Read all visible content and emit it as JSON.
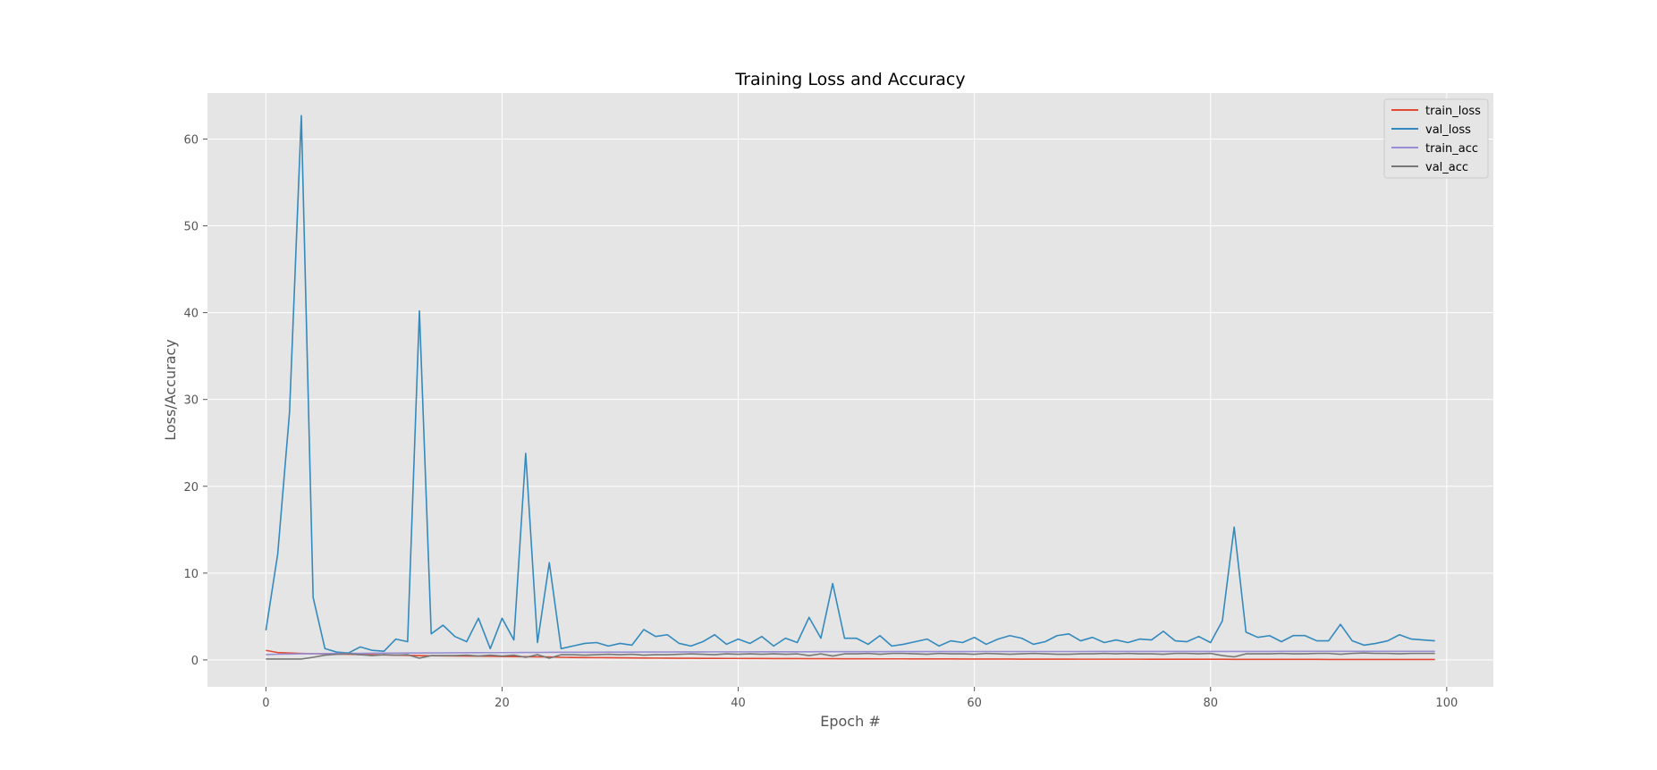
{
  "chart_data": {
    "type": "line",
    "title": "Training Loss and Accuracy",
    "xlabel": "Epoch #",
    "ylabel": "Loss/Accuracy",
    "xlim": [
      -4.95,
      103.95
    ],
    "ylim": [
      -3.1,
      65.3
    ],
    "xticks": [
      0,
      20,
      40,
      60,
      80,
      100
    ],
    "yticks": [
      0,
      10,
      20,
      30,
      40,
      50,
      60
    ],
    "grid": true,
    "legend_position": "top-right",
    "background_color": "#e5e5e5",
    "series": [
      {
        "name": "train_loss",
        "color": "#e24a33",
        "x": [
          0,
          1,
          2,
          3,
          4,
          5,
          6,
          7,
          8,
          9,
          10,
          11,
          12,
          13,
          14,
          15,
          16,
          17,
          18,
          19,
          20,
          21,
          22,
          23,
          24,
          25,
          26,
          27,
          28,
          29,
          30,
          31,
          32,
          33,
          34,
          35,
          36,
          37,
          38,
          39,
          40,
          41,
          42,
          43,
          44,
          45,
          46,
          47,
          48,
          49,
          50,
          51,
          52,
          53,
          54,
          55,
          56,
          57,
          58,
          59,
          60,
          61,
          62,
          63,
          64,
          65,
          66,
          67,
          68,
          69,
          70,
          71,
          72,
          73,
          74,
          75,
          76,
          77,
          78,
          79,
          80,
          81,
          82,
          83,
          84,
          85,
          86,
          87,
          88,
          89,
          90,
          91,
          92,
          93,
          94,
          95,
          96,
          97,
          98,
          99
        ],
        "values": [
          1.1,
          0.85,
          0.8,
          0.75,
          0.72,
          0.7,
          0.68,
          0.65,
          0.62,
          0.6,
          0.58,
          0.55,
          0.52,
          0.5,
          0.48,
          0.47,
          0.46,
          0.45,
          0.43,
          0.42,
          0.4,
          0.38,
          0.37,
          0.35,
          0.34,
          0.3,
          0.28,
          0.27,
          0.26,
          0.25,
          0.24,
          0.23,
          0.22,
          0.21,
          0.2,
          0.19,
          0.19,
          0.18,
          0.18,
          0.17,
          0.17,
          0.16,
          0.16,
          0.15,
          0.15,
          0.15,
          0.14,
          0.14,
          0.14,
          0.13,
          0.13,
          0.13,
          0.12,
          0.12,
          0.12,
          0.11,
          0.11,
          0.11,
          0.11,
          0.1,
          0.1,
          0.1,
          0.1,
          0.1,
          0.09,
          0.09,
          0.09,
          0.09,
          0.09,
          0.08,
          0.08,
          0.08,
          0.08,
          0.08,
          0.08,
          0.07,
          0.07,
          0.07,
          0.07,
          0.07,
          0.07,
          0.07,
          0.06,
          0.06,
          0.06,
          0.06,
          0.06,
          0.06,
          0.06,
          0.06,
          0.05,
          0.05,
          0.05,
          0.05,
          0.05,
          0.05,
          0.05,
          0.05,
          0.05,
          0.05
        ]
      },
      {
        "name": "val_loss",
        "color": "#348abd",
        "x": [
          0,
          1,
          2,
          3,
          4,
          5,
          6,
          7,
          8,
          9,
          10,
          11,
          12,
          13,
          14,
          15,
          16,
          17,
          18,
          19,
          20,
          21,
          22,
          23,
          24,
          25,
          26,
          27,
          28,
          29,
          30,
          31,
          32,
          33,
          34,
          35,
          36,
          37,
          38,
          39,
          40,
          41,
          42,
          43,
          44,
          45,
          46,
          47,
          48,
          49,
          50,
          51,
          52,
          53,
          54,
          55,
          56,
          57,
          58,
          59,
          60,
          61,
          62,
          63,
          64,
          65,
          66,
          67,
          68,
          69,
          70,
          71,
          72,
          73,
          74,
          75,
          76,
          77,
          78,
          79,
          80,
          81,
          82,
          83,
          84,
          85,
          86,
          87,
          88,
          89,
          90,
          91,
          92,
          93,
          94,
          95,
          96,
          97,
          98,
          99
        ],
        "values": [
          3.4,
          12.2,
          28.5,
          62.7,
          7.2,
          1.3,
          0.9,
          0.8,
          1.5,
          1.1,
          1.0,
          2.4,
          2.1,
          40.2,
          3.0,
          4.0,
          2.7,
          2.1,
          4.8,
          1.3,
          4.8,
          2.3,
          23.8,
          2.0,
          11.2,
          1.3,
          1.6,
          1.9,
          2.0,
          1.6,
          1.9,
          1.7,
          3.5,
          2.7,
          2.9,
          1.9,
          1.6,
          2.1,
          2.9,
          1.8,
          2.4,
          1.9,
          2.7,
          1.6,
          2.5,
          2.0,
          4.9,
          2.5,
          8.8,
          2.5,
          2.5,
          1.8,
          2.8,
          1.6,
          1.8,
          2.1,
          2.4,
          1.6,
          2.2,
          2.0,
          2.6,
          1.8,
          2.4,
          2.8,
          2.5,
          1.8,
          2.1,
          2.8,
          3.0,
          2.2,
          2.6,
          2.0,
          2.3,
          2.0,
          2.4,
          2.3,
          3.3,
          2.2,
          2.1,
          2.7,
          2.0,
          4.5,
          15.3,
          3.2,
          2.6,
          2.8,
          2.1,
          2.8,
          2.8,
          2.2,
          2.2,
          4.1,
          2.2,
          1.7,
          1.9,
          2.2,
          2.9,
          2.4,
          2.3,
          2.2
        ]
      },
      {
        "name": "train_acc",
        "color": "#988ed5",
        "x": [
          0,
          1,
          2,
          3,
          4,
          5,
          6,
          7,
          8,
          9,
          10,
          11,
          12,
          13,
          14,
          15,
          16,
          17,
          18,
          19,
          20,
          21,
          22,
          23,
          24,
          25,
          26,
          27,
          28,
          29,
          30,
          31,
          32,
          33,
          34,
          35,
          36,
          37,
          38,
          39,
          40,
          41,
          42,
          43,
          44,
          45,
          46,
          47,
          48,
          49,
          50,
          51,
          52,
          53,
          54,
          55,
          56,
          57,
          58,
          59,
          60,
          61,
          62,
          63,
          64,
          65,
          66,
          67,
          68,
          69,
          70,
          71,
          72,
          73,
          74,
          75,
          76,
          77,
          78,
          79,
          80,
          81,
          82,
          83,
          84,
          85,
          86,
          87,
          88,
          89,
          90,
          91,
          92,
          93,
          94,
          95,
          96,
          97,
          98,
          99
        ],
        "values": [
          0.62,
          0.66,
          0.68,
          0.7,
          0.72,
          0.73,
          0.74,
          0.75,
          0.76,
          0.77,
          0.78,
          0.79,
          0.8,
          0.8,
          0.81,
          0.81,
          0.82,
          0.83,
          0.83,
          0.84,
          0.84,
          0.85,
          0.86,
          0.86,
          0.87,
          0.88,
          0.88,
          0.89,
          0.89,
          0.9,
          0.9,
          0.9,
          0.91,
          0.91,
          0.91,
          0.92,
          0.92,
          0.92,
          0.93,
          0.93,
          0.93,
          0.93,
          0.94,
          0.94,
          0.94,
          0.94,
          0.94,
          0.95,
          0.95,
          0.95,
          0.95,
          0.95,
          0.95,
          0.96,
          0.96,
          0.96,
          0.96,
          0.96,
          0.96,
          0.96,
          0.97,
          0.97,
          0.97,
          0.97,
          0.97,
          0.97,
          0.97,
          0.97,
          0.97,
          0.97,
          0.98,
          0.98,
          0.98,
          0.98,
          0.98,
          0.98,
          0.98,
          0.98,
          0.98,
          0.98,
          0.98,
          0.98,
          0.98,
          0.98,
          0.98,
          0.98,
          0.99,
          0.99,
          0.99,
          0.99,
          0.99,
          0.99,
          0.99,
          0.99,
          0.99,
          0.99,
          0.99,
          0.99,
          0.99,
          0.99
        ]
      },
      {
        "name": "val_acc",
        "color": "#777777",
        "x": [
          0,
          1,
          2,
          3,
          4,
          5,
          6,
          7,
          8,
          9,
          10,
          11,
          12,
          13,
          14,
          15,
          16,
          17,
          18,
          19,
          20,
          21,
          22,
          23,
          24,
          25,
          26,
          27,
          28,
          29,
          30,
          31,
          32,
          33,
          34,
          35,
          36,
          37,
          38,
          39,
          40,
          41,
          42,
          43,
          44,
          45,
          46,
          47,
          48,
          49,
          50,
          51,
          52,
          53,
          54,
          55,
          56,
          57,
          58,
          59,
          60,
          61,
          62,
          63,
          64,
          65,
          66,
          67,
          68,
          69,
          70,
          71,
          72,
          73,
          74,
          75,
          76,
          77,
          78,
          79,
          80,
          81,
          82,
          83,
          84,
          85,
          86,
          87,
          88,
          89,
          90,
          91,
          92,
          93,
          94,
          95,
          96,
          97,
          98,
          99
        ],
        "values": [
          0.1,
          0.1,
          0.1,
          0.1,
          0.3,
          0.55,
          0.65,
          0.7,
          0.6,
          0.5,
          0.6,
          0.55,
          0.6,
          0.2,
          0.5,
          0.5,
          0.5,
          0.55,
          0.45,
          0.55,
          0.45,
          0.55,
          0.3,
          0.6,
          0.2,
          0.6,
          0.6,
          0.55,
          0.6,
          0.65,
          0.6,
          0.65,
          0.55,
          0.6,
          0.6,
          0.65,
          0.7,
          0.65,
          0.6,
          0.7,
          0.65,
          0.7,
          0.65,
          0.7,
          0.65,
          0.7,
          0.5,
          0.7,
          0.45,
          0.7,
          0.7,
          0.75,
          0.65,
          0.75,
          0.75,
          0.7,
          0.65,
          0.75,
          0.7,
          0.7,
          0.65,
          0.75,
          0.7,
          0.65,
          0.7,
          0.75,
          0.7,
          0.65,
          0.65,
          0.7,
          0.7,
          0.75,
          0.7,
          0.75,
          0.7,
          0.7,
          0.65,
          0.75,
          0.75,
          0.7,
          0.75,
          0.5,
          0.35,
          0.7,
          0.7,
          0.7,
          0.75,
          0.7,
          0.7,
          0.75,
          0.75,
          0.65,
          0.75,
          0.8,
          0.75,
          0.75,
          0.7,
          0.75,
          0.75,
          0.75
        ]
      }
    ]
  }
}
